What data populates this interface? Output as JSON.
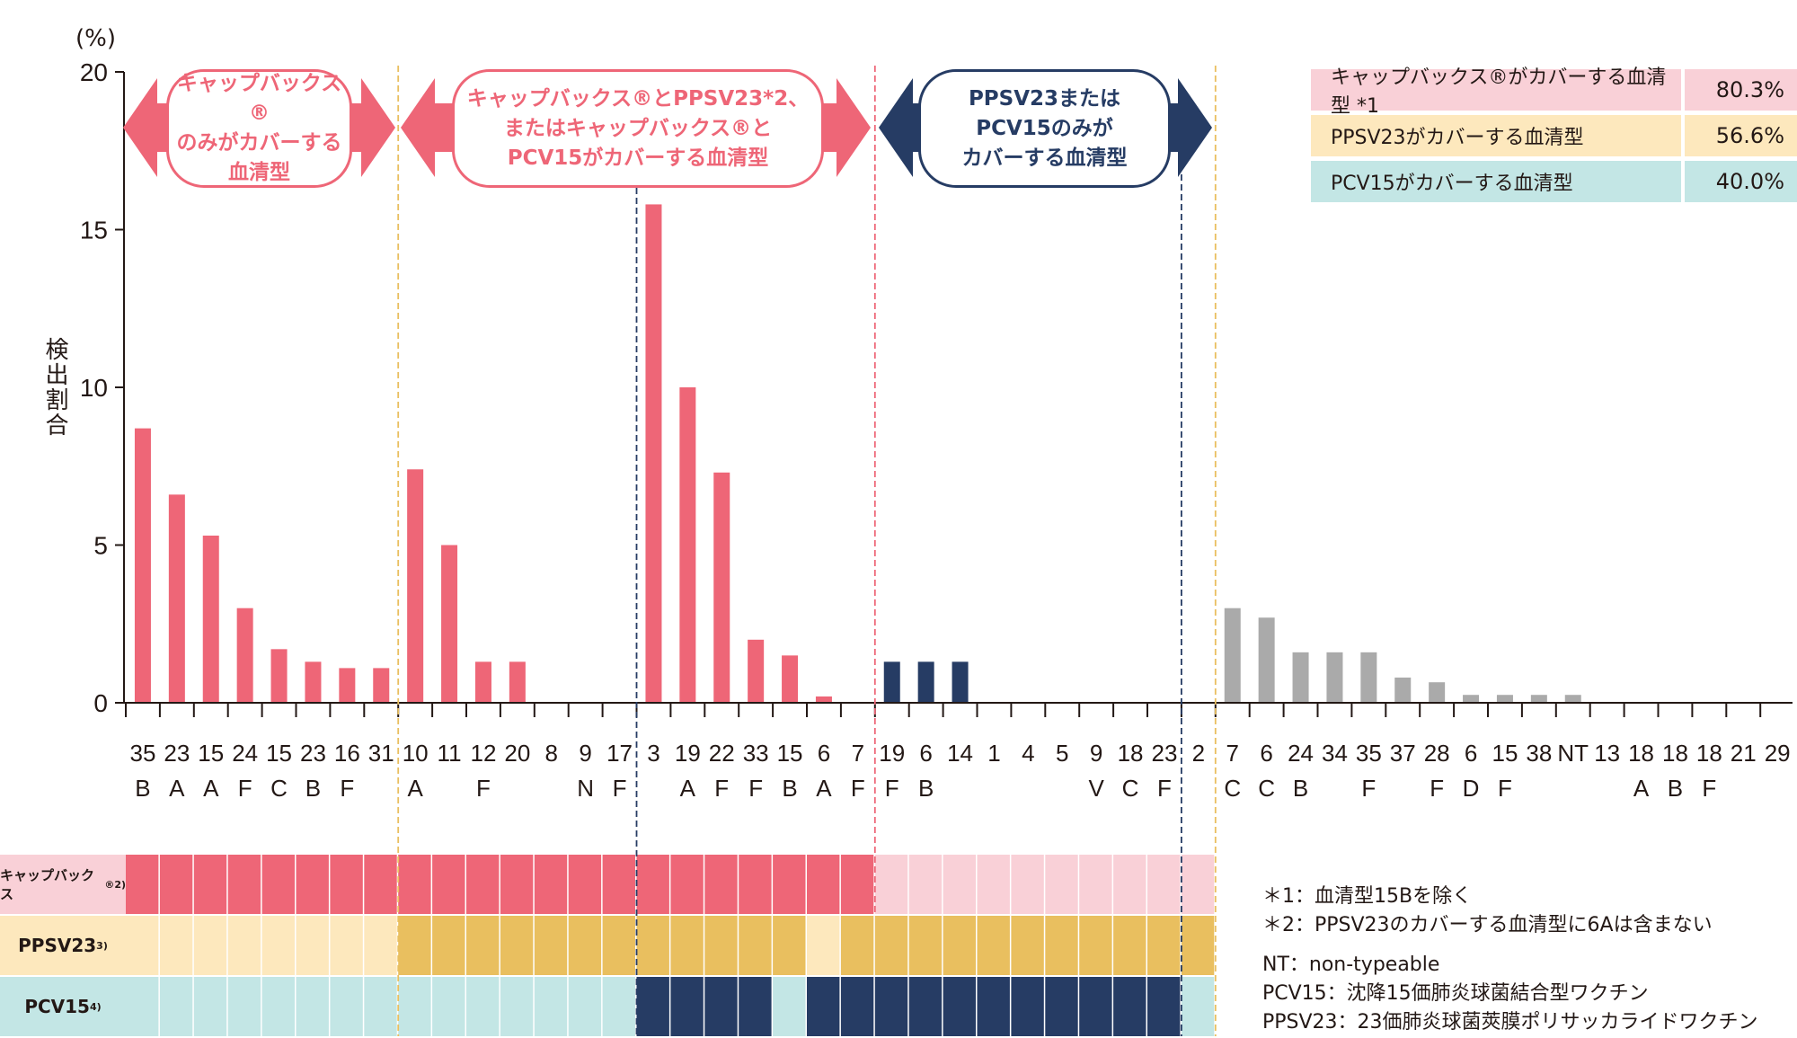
{
  "colors": {
    "capvaxive": "#ee6677",
    "capvaxive_light": "#f9d0d7",
    "ppsv23": "#e9bf5f",
    "ppsv23_light": "#fde8bd",
    "pcv15": "#263c64",
    "pcv15_light": "#c3e6e5",
    "other": "#aaaaaa",
    "ppsv23_only_line": "#ee6677"
  },
  "chart_data": {
    "type": "bar",
    "ylabel": "検出割合",
    "yunit": "(%)",
    "ylim": [
      0,
      20
    ],
    "yticks": [
      0,
      5,
      10,
      15,
      20
    ],
    "grid": false,
    "categories": [
      {
        "num": "35",
        "sub": "B"
      },
      {
        "num": "23",
        "sub": "A"
      },
      {
        "num": "15",
        "sub": "A"
      },
      {
        "num": "24",
        "sub": "F"
      },
      {
        "num": "15",
        "sub": "C"
      },
      {
        "num": "23",
        "sub": "B"
      },
      {
        "num": "16",
        "sub": "F"
      },
      {
        "num": "31",
        "sub": ""
      },
      {
        "num": "10",
        "sub": "A"
      },
      {
        "num": "11",
        "sub": ""
      },
      {
        "num": "12",
        "sub": "F"
      },
      {
        "num": "20",
        "sub": ""
      },
      {
        "num": "8",
        "sub": ""
      },
      {
        "num": "9",
        "sub": "N"
      },
      {
        "num": "17",
        "sub": "F"
      },
      {
        "num": "3",
        "sub": ""
      },
      {
        "num": "19",
        "sub": "A"
      },
      {
        "num": "22",
        "sub": "F"
      },
      {
        "num": "33",
        "sub": "F"
      },
      {
        "num": "15",
        "sub": "B"
      },
      {
        "num": "6",
        "sub": "A"
      },
      {
        "num": "7",
        "sub": "F"
      },
      {
        "num": "19",
        "sub": "F"
      },
      {
        "num": "6",
        "sub": "B"
      },
      {
        "num": "14",
        "sub": ""
      },
      {
        "num": "1",
        "sub": ""
      },
      {
        "num": "4",
        "sub": ""
      },
      {
        "num": "5",
        "sub": ""
      },
      {
        "num": "9",
        "sub": "V"
      },
      {
        "num": "18",
        "sub": "C"
      },
      {
        "num": "23",
        "sub": "F"
      },
      {
        "num": "2",
        "sub": ""
      },
      {
        "num": "7",
        "sub": "C"
      },
      {
        "num": "6",
        "sub": "C"
      },
      {
        "num": "24",
        "sub": "B"
      },
      {
        "num": "34",
        "sub": ""
      },
      {
        "num": "35",
        "sub": "F"
      },
      {
        "num": "37",
        "sub": ""
      },
      {
        "num": "28",
        "sub": "F"
      },
      {
        "num": "6",
        "sub": "D"
      },
      {
        "num": "15",
        "sub": "F"
      },
      {
        "num": "38",
        "sub": ""
      },
      {
        "num": "NT",
        "sub": ""
      },
      {
        "num": "13",
        "sub": ""
      },
      {
        "num": "18",
        "sub": "A"
      },
      {
        "num": "18",
        "sub": "B"
      },
      {
        "num": "18",
        "sub": "F"
      },
      {
        "num": "21",
        "sub": ""
      },
      {
        "num": "29",
        "sub": ""
      }
    ],
    "values": [
      8.7,
      6.6,
      5.3,
      3.0,
      1.7,
      1.3,
      1.1,
      1.1,
      7.4,
      5.0,
      1.3,
      1.3,
      0,
      0,
      0,
      15.8,
      10.0,
      7.3,
      2.0,
      1.5,
      0.2,
      0,
      1.3,
      1.3,
      1.3,
      0,
      0,
      0,
      0,
      0,
      0,
      0,
      3.0,
      2.7,
      1.6,
      1.6,
      1.6,
      0.8,
      0.65,
      0.25,
      0.25,
      0.25,
      0.25,
      0,
      0,
      0,
      0,
      0,
      0
    ],
    "bar_color_group": [
      "capvaxive",
      "capvaxive",
      "capvaxive",
      "capvaxive",
      "capvaxive",
      "capvaxive",
      "capvaxive",
      "capvaxive",
      "capvaxive",
      "capvaxive",
      "capvaxive",
      "capvaxive",
      "capvaxive",
      "capvaxive",
      "capvaxive",
      "capvaxive",
      "capvaxive",
      "capvaxive",
      "capvaxive",
      "capvaxive",
      "capvaxive",
      "capvaxive",
      "pcv15",
      "pcv15",
      "pcv15",
      "pcv15",
      "pcv15",
      "pcv15",
      "pcv15",
      "pcv15",
      "pcv15",
      "pcv15",
      "other",
      "other",
      "other",
      "other",
      "other",
      "other",
      "other",
      "other",
      "other",
      "other",
      "other",
      "other",
      "other",
      "other",
      "other",
      "other",
      "other"
    ]
  },
  "coverage": {
    "rows": [
      {
        "label": "キャップバックス",
        "sup": "®2)",
        "key": "capvaxive",
        "covered": [
          1,
          1,
          1,
          1,
          1,
          1,
          1,
          1,
          1,
          1,
          1,
          1,
          1,
          1,
          1,
          1,
          1,
          1,
          1,
          1,
          1,
          1,
          0,
          0,
          0,
          0,
          0,
          0,
          0,
          0,
          0,
          0
        ]
      },
      {
        "label": "PPSV23",
        "sup": "3)",
        "key": "ppsv23",
        "covered": [
          0,
          0,
          0,
          0,
          0,
          0,
          0,
          0,
          1,
          1,
          1,
          1,
          1,
          1,
          1,
          1,
          1,
          1,
          1,
          1,
          0,
          1,
          1,
          1,
          1,
          1,
          1,
          1,
          1,
          1,
          1,
          1
        ]
      },
      {
        "label": "PCV15",
        "sup": "4)",
        "key": "pcv15",
        "covered": [
          0,
          0,
          0,
          0,
          0,
          0,
          0,
          0,
          0,
          0,
          0,
          0,
          0,
          0,
          0,
          1,
          1,
          1,
          1,
          0,
          1,
          1,
          1,
          1,
          1,
          1,
          1,
          1,
          1,
          1,
          1,
          0
        ]
      }
    ]
  },
  "banners": [
    {
      "lines": [
        "キャップバックス®",
        "のみがカバーする",
        "血清型"
      ],
      "color": "#ee6677"
    },
    {
      "lines": [
        "キャップバックス®とPPSV23*2、",
        "またはキャップバックス®と",
        "PCV15がカバーする血清型"
      ],
      "color": "#ee6677"
    },
    {
      "lines": [
        "PPSV23または",
        "PCV15のみが",
        "カバーする血清型"
      ],
      "color": "#263c64"
    }
  ],
  "legend": [
    {
      "label": "キャップバックス®がカバーする血清型 *1",
      "value": "80.3%",
      "bg": "#f9d0d7",
      "vbg": "#f9d0d7"
    },
    {
      "label": "PPSV23がカバーする血清型",
      "value": "56.6%",
      "bg": "#fde8bd",
      "vbg": "#fde8bd"
    },
    {
      "label": "PCV15がカバーする血清型",
      "value": "40.0%",
      "bg": "#c3e6e5",
      "vbg": "#c3e6e5"
    }
  ],
  "notes": {
    "n1": "＊1：血清型15Bを除く",
    "n2": "＊2：PPSV23のカバーする血清型に6Aは含まない",
    "n3": "NT：non-typeable",
    "n4": "PCV15：沈降15価肺炎球菌結合型ワクチン",
    "n5": "PPSV23：23価肺炎球菌莢膜ポリサッカライドワクチン"
  }
}
